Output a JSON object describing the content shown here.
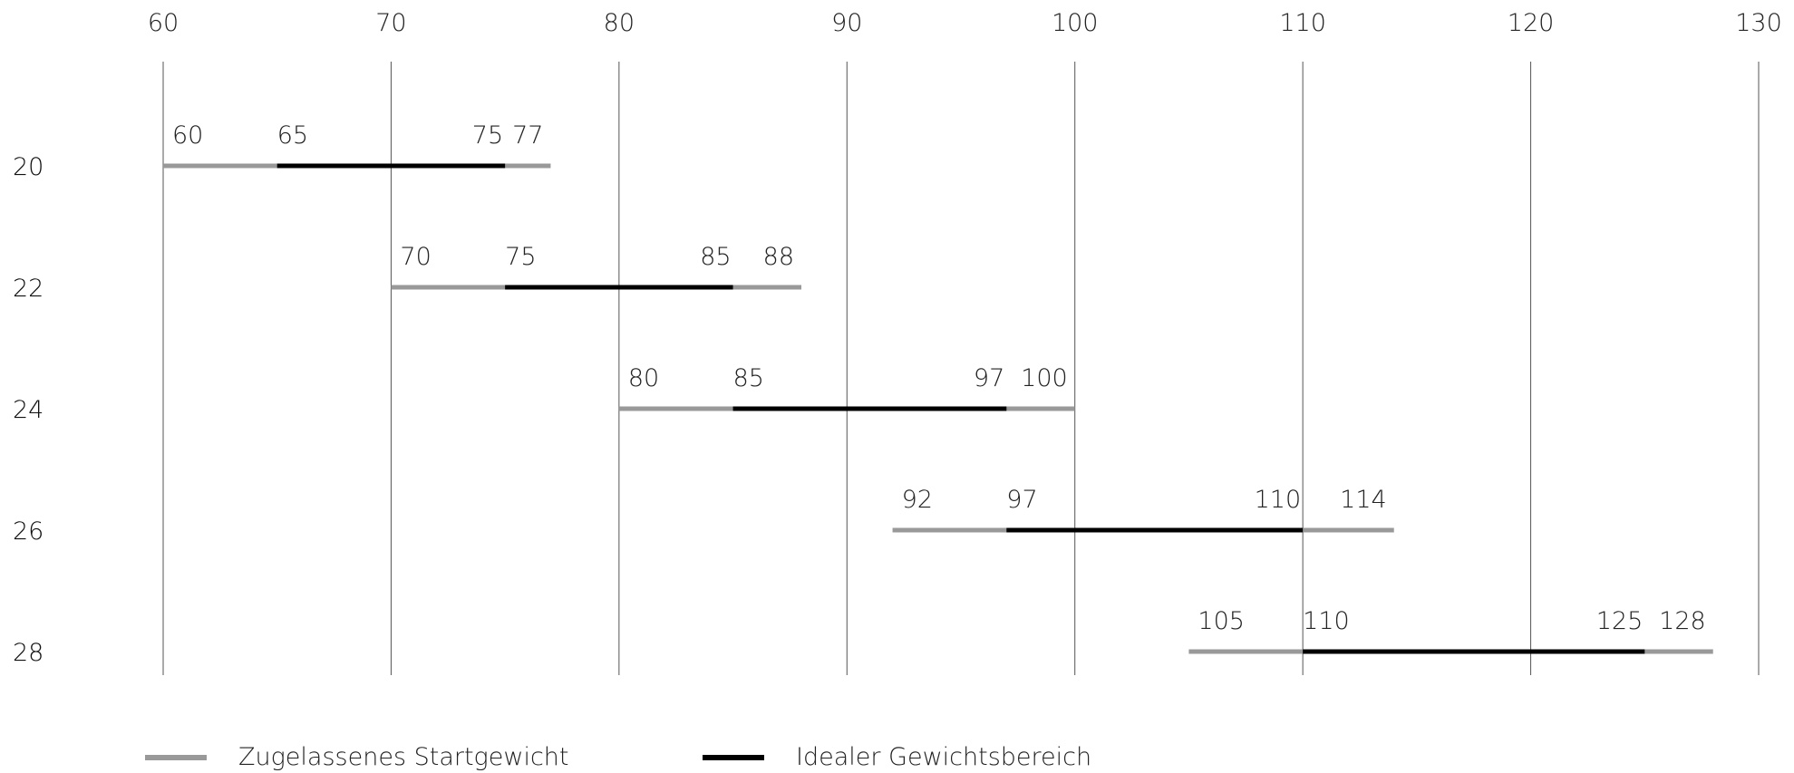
{
  "chart_data": {
    "type": "range-bar",
    "x_ticks": [
      60,
      70,
      80,
      90,
      100,
      110,
      120,
      130
    ],
    "xlim": [
      60,
      130
    ],
    "grid": true,
    "legend_position": "bottom-left",
    "series": [
      {
        "name": "Zugelassenes Startgewicht",
        "color": "#999999"
      },
      {
        "name": "Idealer Gewichtsbereich",
        "color": "#000000"
      }
    ],
    "rows": [
      {
        "label": "20",
        "allowed": [
          60,
          77
        ],
        "ideal": [
          65,
          75
        ]
      },
      {
        "label": "22",
        "allowed": [
          70,
          88
        ],
        "ideal": [
          75,
          85
        ]
      },
      {
        "label": "24",
        "allowed": [
          80,
          100
        ],
        "ideal": [
          85,
          97
        ]
      },
      {
        "label": "26",
        "allowed": [
          92,
          114
        ],
        "ideal": [
          97,
          110
        ]
      },
      {
        "label": "28",
        "allowed": [
          105,
          128
        ],
        "ideal": [
          110,
          125
        ]
      }
    ]
  },
  "legend": {
    "allowed_label": "Zugelassenes Startgewicht",
    "ideal_label": "Idealer Gewichtsbereich"
  }
}
